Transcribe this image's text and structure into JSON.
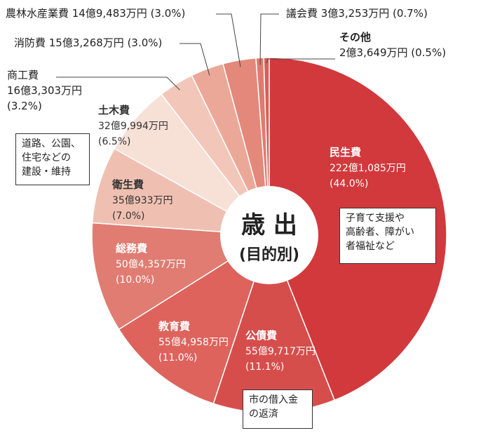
{
  "chart_data": {
    "type": "pie",
    "title": "歳 出",
    "subtitle": "(目的別)",
    "slices": [
      {
        "name": "民生費",
        "amount": "222億1,085万円",
        "pct_label": "(44.0%)",
        "value": 44.0,
        "color": "#d2393c"
      },
      {
        "name": "公債費",
        "amount": "55億9,717万円",
        "pct_label": "(11.1%)",
        "value": 11.1,
        "color": "#d64e4c"
      },
      {
        "name": "教育費",
        "amount": "55億4,958万円",
        "pct_label": "(11.0%)",
        "value": 11.0,
        "color": "#dd635c"
      },
      {
        "name": "総務費",
        "amount": "50億4,357万円",
        "pct_label": "(10.0%)",
        "value": 10.0,
        "color": "#e07c72"
      },
      {
        "name": "衛生費",
        "amount": "35億933万円",
        "pct_label": "(7.0%)",
        "value": 7.0,
        "color": "#efc0b1"
      },
      {
        "name": "土木費",
        "amount": "32億9,994万円",
        "pct_label": "(6.5%)",
        "value": 6.5,
        "color": "#f7e0d6"
      },
      {
        "name": "商工費",
        "amount": "16億3,303万円",
        "pct_label": "(3.2%)",
        "value": 3.2,
        "color": "#f2c6b9"
      },
      {
        "name": "消防費",
        "amount": "15億3,268万円",
        "pct_label": "(3.0%)",
        "value": 3.0,
        "color": "#eba898"
      },
      {
        "name": "農林水産業費",
        "amount": "14億9,483万円",
        "pct_label": "(3.0%)",
        "value": 3.0,
        "color": "#e3887a"
      },
      {
        "name": "議会費",
        "amount": "3億3,253万円",
        "pct_label": "(0.7%)",
        "value": 0.7,
        "color": "#e07a6f"
      },
      {
        "name": "その他",
        "amount": "2億3,649万円",
        "pct_label": "(0.5%)",
        "value": 0.5,
        "color": "#d95f55"
      }
    ],
    "notes": {
      "民生費": "子育て支援や\n高齢者、障がい\n者福祉など",
      "公債費": "市の借入金\nの返済",
      "土木費": "道路、公園、\n住宅などの\n建設・維持"
    }
  }
}
